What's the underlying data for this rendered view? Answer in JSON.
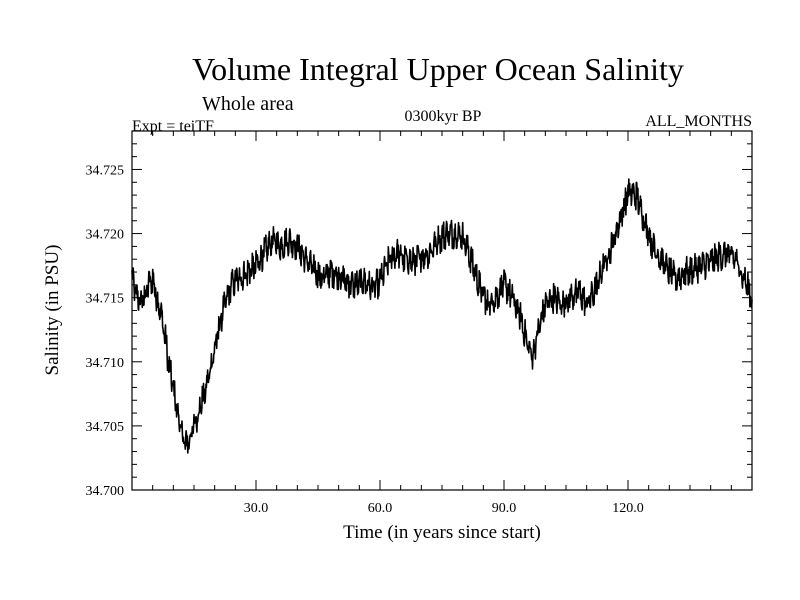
{
  "chart_data": {
    "type": "line",
    "title": "Volume Integral Upper Ocean Salinity",
    "subtitle": "Whole area",
    "experiment": "Expt = teiTF",
    "period": "0300kyr BP",
    "months": "ALL_MONTHS",
    "xlabel": "Time (in years since start)",
    "ylabel": "Salinity (in PSU)",
    "xlim": [
      0,
      150
    ],
    "ylim": [
      34.7,
      34.728
    ],
    "xticks": [
      30,
      60,
      90,
      120
    ],
    "xtick_labels": [
      "30.0",
      "60.0",
      "90.0",
      "120.0"
    ],
    "yticks": [
      34.7,
      34.705,
      34.71,
      34.715,
      34.72,
      34.725
    ],
    "ytick_labels": [
      "34.700",
      "34.705",
      "34.710",
      "34.715",
      "34.720",
      "34.725"
    ],
    "series": [
      {
        "name": "Salinity",
        "x": [
          0,
          1,
          2,
          3,
          4,
          5,
          6,
          7,
          8,
          9,
          10,
          11,
          12,
          13,
          14,
          15,
          16,
          17,
          18,
          19,
          20,
          22,
          24,
          26,
          28,
          30,
          32,
          34,
          36,
          38,
          40,
          42,
          44,
          46,
          48,
          50,
          52,
          54,
          56,
          58,
          60,
          62,
          64,
          66,
          68,
          70,
          72,
          74,
          76,
          78,
          80,
          82,
          84,
          86,
          88,
          90,
          92,
          94,
          96,
          97,
          98,
          100,
          102,
          104,
          106,
          108,
          110,
          112,
          114,
          116,
          118,
          120,
          122,
          124,
          126,
          128,
          130,
          132,
          134,
          136,
          138,
          140,
          142,
          144,
          146,
          148,
          150
        ],
        "values": [
          34.7165,
          34.7152,
          34.7147,
          34.715,
          34.716,
          34.7165,
          34.715,
          34.7138,
          34.712,
          34.7095,
          34.708,
          34.706,
          34.7045,
          34.7035,
          34.704,
          34.705,
          34.706,
          34.707,
          34.708,
          34.7095,
          34.711,
          34.714,
          34.716,
          34.7165,
          34.717,
          34.7175,
          34.7185,
          34.7195,
          34.719,
          34.7195,
          34.719,
          34.718,
          34.7172,
          34.7165,
          34.717,
          34.7168,
          34.7162,
          34.716,
          34.7163,
          34.7158,
          34.7162,
          34.7178,
          34.7185,
          34.718,
          34.7178,
          34.7182,
          34.7185,
          34.7195,
          34.72,
          34.72,
          34.7198,
          34.718,
          34.716,
          34.7145,
          34.715,
          34.716,
          34.715,
          34.7135,
          34.711,
          34.7105,
          34.712,
          34.7145,
          34.715,
          34.7145,
          34.715,
          34.7155,
          34.7145,
          34.7155,
          34.7175,
          34.719,
          34.721,
          34.7232,
          34.723,
          34.721,
          34.719,
          34.718,
          34.717,
          34.7165,
          34.717,
          34.7172,
          34.7175,
          34.7178,
          34.7182,
          34.7185,
          34.718,
          34.7165,
          34.715
        ]
      }
    ]
  }
}
